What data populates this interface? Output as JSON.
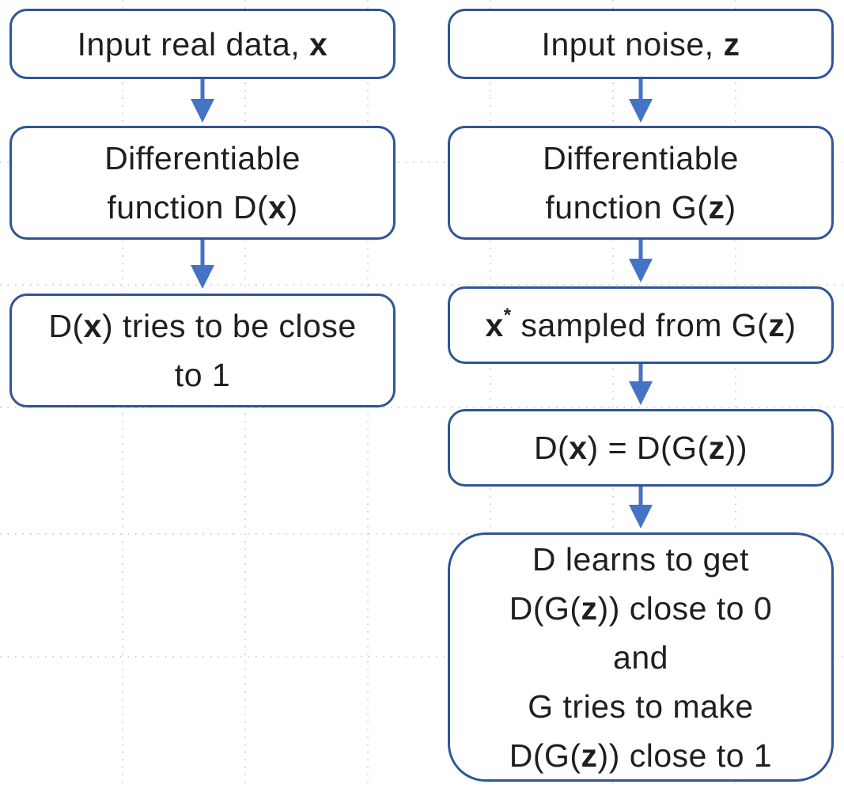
{
  "diagram": {
    "left_column": {
      "input_real": {
        "text": "Input real data, ",
        "var": "x"
      },
      "disc_function": {
        "line1": "Differentiable",
        "line2_pre": "function D(",
        "line2_var": "x",
        "line2_post": ")"
      },
      "disc_real_goal": {
        "line1_pre": "D(",
        "line1_var": "x",
        "line1_post": ") tries to be close",
        "line2": "to 1"
      }
    },
    "right_column": {
      "input_noise": {
        "text": "Input noise, ",
        "var": "z"
      },
      "gen_function": {
        "line1": "Differentiable",
        "line2_pre": "function G(",
        "line2_var": "z",
        "line2_post": ")"
      },
      "sample": {
        "var": "x",
        "sup": "*",
        "mid": " sampled from G(",
        "var2": "z",
        "post": ")"
      },
      "disc_fake": {
        "pre": "D(",
        "var": "x",
        "mid": ") = D(G(",
        "var2": "z",
        "post": "))"
      },
      "objective": {
        "l1": "D learns to get",
        "l2_pre": "D(G(",
        "l2_var": "z",
        "l2_post": ")) close to 0",
        "l3": "and",
        "l4": "G tries to make",
        "l5_pre": "D(G(",
        "l5_var": "z",
        "l5_post": ")) close to 1"
      }
    },
    "colors": {
      "box_border": "#2f5597",
      "arrow": "#4472c4",
      "grid_dots": "#bfbfbf"
    }
  }
}
